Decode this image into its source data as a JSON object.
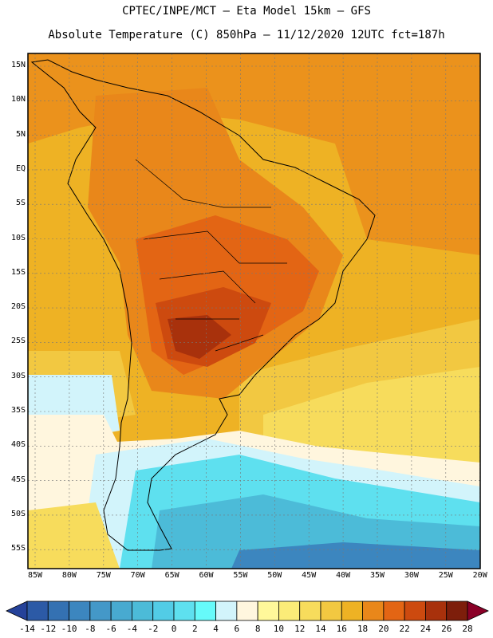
{
  "header": {
    "line1": "CPTEC/INPE/MCT –  Eta Model 15km – GFS",
    "line2": "Absolute Temperature (C) 850hPa – 11/12/2020 12UTC fct=187h"
  },
  "map": {
    "lat_labels": [
      "15N",
      "10N",
      "5N",
      "EQ",
      "5S",
      "10S",
      "15S",
      "20S",
      "25S",
      "30S",
      "35S",
      "40S",
      "45S",
      "50S",
      "55S"
    ],
    "lon_labels": [
      "85W",
      "80W",
      "75W",
      "70W",
      "65W",
      "60W",
      "55W",
      "50W",
      "45W",
      "40W",
      "35W",
      "30W",
      "25W",
      "20W"
    ]
  },
  "colorbar": {
    "labels": [
      "-14",
      "-12",
      "-10",
      "-8",
      "-6",
      "-4",
      "-2",
      "0",
      "2",
      "4",
      "6",
      "8",
      "10",
      "12",
      "14",
      "16",
      "18",
      "20",
      "22",
      "24",
      "26",
      "28"
    ],
    "colors": [
      "#25429a",
      "#2c5aa6",
      "#3471b2",
      "#3c86bf",
      "#4498c8",
      "#48aad0",
      "#4cbbd8",
      "#52cce6",
      "#5ee0ef",
      "#66fafa",
      "#d2f4fb",
      "#fff6de",
      "#fff89a",
      "#fbec78",
      "#f7dc5c",
      "#f2c841",
      "#eeb224",
      "#e9871a",
      "#e36514",
      "#cd4a0f",
      "#a8310c",
      "#7d1e0b",
      "#8a0027"
    ]
  }
}
